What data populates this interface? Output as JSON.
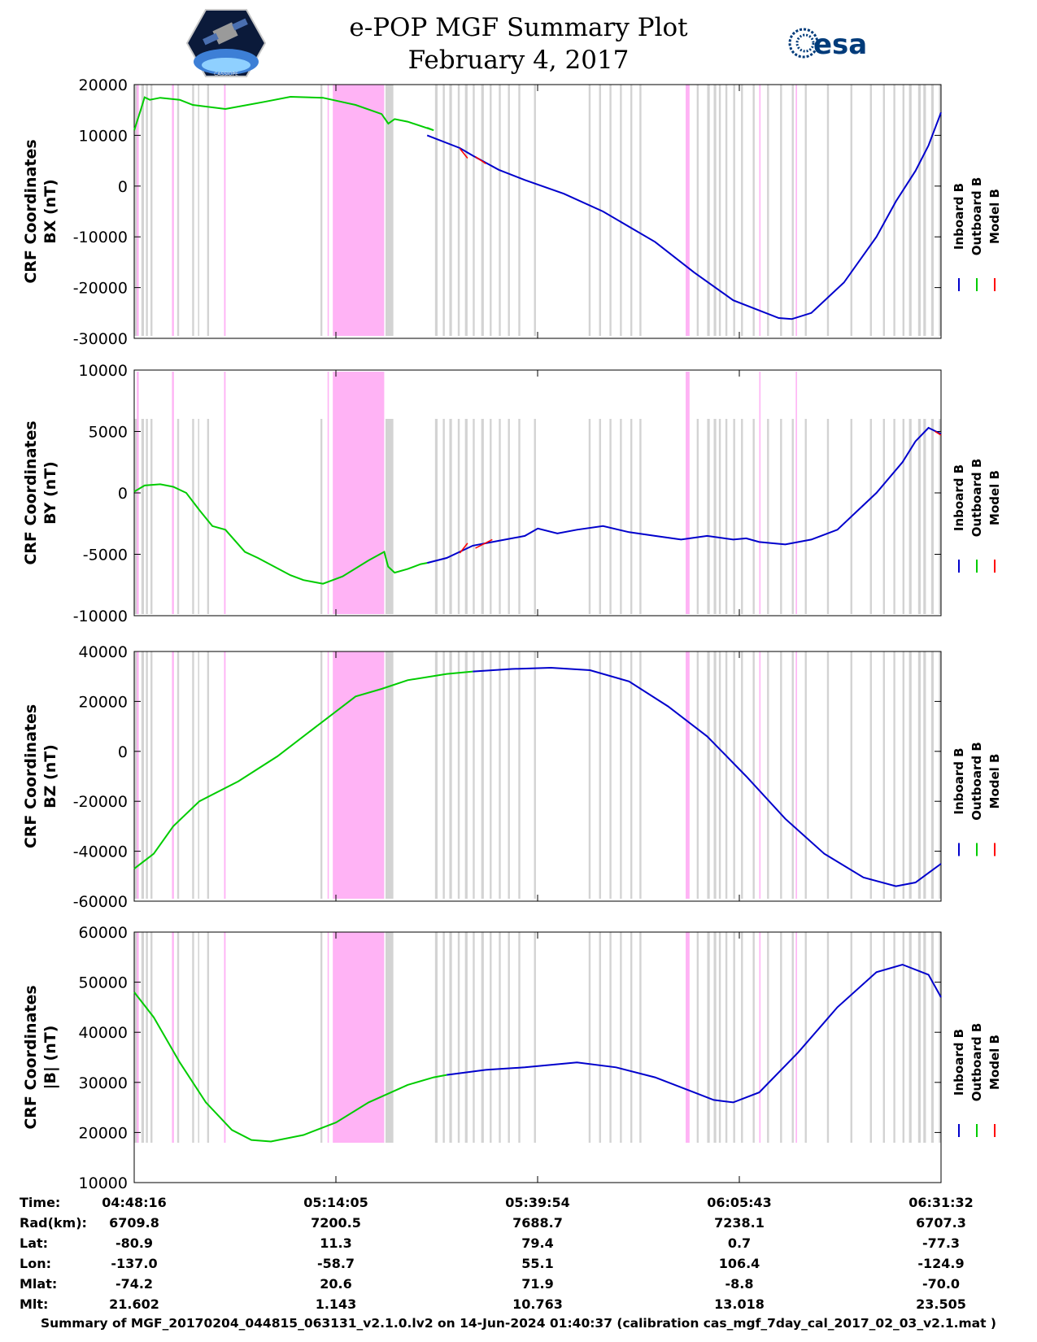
{
  "title": {
    "line1": "e-POP MGF Summary Plot",
    "line2": "February 4, 2017"
  },
  "logos": {
    "left": "cassiope-mission-logo",
    "right_text": "esa"
  },
  "colors": {
    "inboard": "#0000cc",
    "outboard": "#00cc00",
    "model": "#ff0000",
    "gray_band": "#d3d3d3",
    "pink_band": "#ffb3f5"
  },
  "legend": {
    "labels": [
      "Inboard B",
      "Outboard B",
      "Model B"
    ]
  },
  "chart_data": [
    {
      "type": "line",
      "name": "BX",
      "ylabel": [
        "CRF Coordinates",
        "BX (nT)"
      ],
      "ylim": [
        -30000,
        20000
      ],
      "yticks": [
        20000,
        10000,
        0,
        -10000,
        -20000,
        -30000
      ],
      "xlim": [
        0,
        6196
      ],
      "xticks": [
        0,
        1549,
        3098,
        4647,
        6196
      ],
      "outboard": [
        [
          0,
          11000
        ],
        [
          50,
          15000
        ],
        [
          80,
          17500
        ],
        [
          120,
          17000
        ],
        [
          200,
          17400
        ],
        [
          350,
          17000
        ],
        [
          450,
          16000
        ],
        [
          700,
          15200
        ],
        [
          1000,
          16600
        ],
        [
          1200,
          17600
        ],
        [
          1449,
          17400
        ],
        [
          1700,
          16000
        ],
        [
          1900,
          14200
        ],
        [
          1951,
          12300
        ],
        [
          2000,
          13200
        ],
        [
          2100,
          12700
        ],
        [
          2300,
          11000
        ],
        [
          2250,
          11500
        ]
      ],
      "inboard": [
        [
          2250,
          10000
        ],
        [
          2500,
          7500
        ],
        [
          2600,
          6000
        ],
        [
          2800,
          3200
        ],
        [
          3000,
          1200
        ],
        [
          3300,
          -1500
        ],
        [
          3600,
          -5000
        ],
        [
          4000,
          -11000
        ],
        [
          4300,
          -17000
        ],
        [
          4600,
          -22500
        ],
        [
          4800,
          -24500
        ],
        [
          4950,
          -26000
        ],
        [
          5050,
          -26200
        ],
        [
          5200,
          -25000
        ],
        [
          5450,
          -19000
        ],
        [
          5700,
          -10000
        ],
        [
          5850,
          -3000
        ],
        [
          6000,
          3000
        ],
        [
          6100,
          8000
        ],
        [
          6196,
          14500
        ]
      ],
      "model": [
        [
          2500,
          7400
        ],
        [
          2560,
          5500
        ],
        [
          2620,
          5800
        ],
        [
          2700,
          4400
        ]
      ]
    },
    {
      "type": "line",
      "name": "BY",
      "ylabel": [
        "CRF Coordinates",
        "BY (nT)"
      ],
      "ylim": [
        -10000,
        10000
      ],
      "yticks": [
        10000,
        5000,
        0,
        -5000,
        -10000
      ],
      "xlim": [
        0,
        6196
      ],
      "xticks": [
        0,
        1549,
        3098,
        4647,
        6196
      ],
      "outboard": [
        [
          0,
          100
        ],
        [
          80,
          600
        ],
        [
          200,
          700
        ],
        [
          300,
          500
        ],
        [
          400,
          0
        ],
        [
          500,
          -1400
        ],
        [
          600,
          -2700
        ],
        [
          700,
          -3000
        ],
        [
          850,
          -4800
        ],
        [
          950,
          -5300
        ],
        [
          1200,
          -6700
        ],
        [
          1300,
          -7100
        ],
        [
          1450,
          -7400
        ],
        [
          1600,
          -6800
        ],
        [
          1800,
          -5500
        ],
        [
          1920,
          -4800
        ],
        [
          1950,
          -6000
        ],
        [
          2000,
          -6500
        ],
        [
          2100,
          -6200
        ],
        [
          2200,
          -5800
        ],
        [
          2250,
          -5700
        ]
      ],
      "inboard": [
        [
          2250,
          -5700
        ],
        [
          2400,
          -5300
        ],
        [
          2600,
          -4300
        ],
        [
          2800,
          -3900
        ],
        [
          3000,
          -3500
        ],
        [
          3100,
          -2900
        ],
        [
          3250,
          -3300
        ],
        [
          3400,
          -3000
        ],
        [
          3600,
          -2700
        ],
        [
          3800,
          -3200
        ],
        [
          4000,
          -3500
        ],
        [
          4200,
          -3800
        ],
        [
          4400,
          -3500
        ],
        [
          4600,
          -3800
        ],
        [
          4700,
          -3700
        ],
        [
          4800,
          -4000
        ],
        [
          5000,
          -4200
        ],
        [
          5200,
          -3800
        ],
        [
          5400,
          -3000
        ],
        [
          5550,
          -1500
        ],
        [
          5700,
          0
        ],
        [
          5900,
          2500
        ],
        [
          6000,
          4200
        ],
        [
          6100,
          5300
        ],
        [
          6196,
          4800
        ]
      ],
      "model": [
        [
          2500,
          -4900
        ],
        [
          2560,
          -4100
        ],
        [
          2620,
          -4500
        ],
        [
          2750,
          -3800
        ],
        [
          6150,
          5000
        ],
        [
          6196,
          4700
        ]
      ]
    },
    {
      "type": "line",
      "name": "BZ",
      "ylabel": [
        "CRF Coordinates",
        "BZ (nT)"
      ],
      "ylim": [
        -60000,
        40000
      ],
      "yticks": [
        40000,
        20000,
        0,
        -20000,
        -40000,
        -60000
      ],
      "xlim": [
        0,
        6196
      ],
      "xticks": [
        0,
        1549,
        3098,
        4647,
        6196
      ],
      "outboard": [
        [
          0,
          -47000
        ],
        [
          150,
          -41000
        ],
        [
          300,
          -30000
        ],
        [
          500,
          -20000
        ],
        [
          800,
          -12000
        ],
        [
          1100,
          -2000
        ],
        [
          1400,
          10000
        ],
        [
          1700,
          22000
        ],
        [
          1900,
          25000
        ],
        [
          2100,
          28500
        ],
        [
          2400,
          31000
        ],
        [
          2600,
          32000
        ]
      ],
      "inboard": [
        [
          2600,
          32000
        ],
        [
          2900,
          33000
        ],
        [
          3200,
          33500
        ],
        [
          3500,
          32500
        ],
        [
          3800,
          28000
        ],
        [
          4100,
          18000
        ],
        [
          4400,
          6000
        ],
        [
          4700,
          -10000
        ],
        [
          5000,
          -27000
        ],
        [
          5300,
          -41000
        ],
        [
          5600,
          -50500
        ],
        [
          5850,
          -54000
        ],
        [
          6000,
          -52500
        ],
        [
          6196,
          -45000
        ]
      ],
      "model": []
    },
    {
      "type": "line",
      "name": "|B|",
      "ylabel": [
        "CRF Coordinates",
        "|B| (nT)"
      ],
      "ylim": [
        10000,
        60000
      ],
      "yticks": [
        60000,
        50000,
        40000,
        30000,
        20000,
        10000
      ],
      "xlim": [
        0,
        6196
      ],
      "xticks": [
        0,
        1549,
        3098,
        4647,
        6196
      ],
      "outboard": [
        [
          0,
          48000
        ],
        [
          150,
          43000
        ],
        [
          350,
          34000
        ],
        [
          550,
          26000
        ],
        [
          750,
          20500
        ],
        [
          900,
          18500
        ],
        [
          1050,
          18200
        ],
        [
          1300,
          19500
        ],
        [
          1550,
          22000
        ],
        [
          1800,
          26000
        ],
        [
          2100,
          29500
        ],
        [
          2300,
          31000
        ],
        [
          2400,
          31500
        ]
      ],
      "inboard": [
        [
          2400,
          31500
        ],
        [
          2700,
          32500
        ],
        [
          3000,
          33000
        ],
        [
          3400,
          34000
        ],
        [
          3700,
          33000
        ],
        [
          4000,
          31000
        ],
        [
          4300,
          28000
        ],
        [
          4450,
          26500
        ],
        [
          4600,
          26000
        ],
        [
          4800,
          28000
        ],
        [
          5100,
          36000
        ],
        [
          5400,
          45000
        ],
        [
          5700,
          52000
        ],
        [
          5900,
          53500
        ],
        [
          6100,
          51500
        ],
        [
          6196,
          47000
        ]
      ],
      "model": []
    }
  ],
  "bands": {
    "gray": [
      [
        0,
        30
      ],
      [
        55,
        75
      ],
      [
        90,
        105
      ],
      [
        125,
        140
      ],
      [
        330,
        345
      ],
      [
        445,
        460
      ],
      [
        490,
        500
      ],
      [
        560,
        575
      ],
      [
        1430,
        1445
      ],
      [
        1930,
        1990
      ],
      [
        2310,
        2330
      ],
      [
        2370,
        2385
      ],
      [
        2420,
        2440
      ],
      [
        2485,
        2500
      ],
      [
        2540,
        2560
      ],
      [
        2600,
        2615
      ],
      [
        2665,
        2685
      ],
      [
        2730,
        2745
      ],
      [
        2800,
        2815
      ],
      [
        2870,
        2885
      ],
      [
        2950,
        2965
      ],
      [
        3070,
        3085
      ],
      [
        3490,
        3505
      ],
      [
        3570,
        3585
      ],
      [
        3650,
        3665
      ],
      [
        3730,
        3745
      ],
      [
        3810,
        3825
      ],
      [
        3880,
        3895
      ],
      [
        4320,
        4335
      ],
      [
        4400,
        4420
      ],
      [
        4450,
        4470
      ],
      [
        4490,
        4505
      ],
      [
        4540,
        4555
      ],
      [
        4600,
        4615
      ],
      [
        4660,
        4675
      ],
      [
        4750,
        4765
      ],
      [
        4860,
        4875
      ],
      [
        4960,
        4975
      ],
      [
        5050,
        5065
      ],
      [
        5150,
        5165
      ],
      [
        5320,
        5335
      ],
      [
        5500,
        5515
      ],
      [
        5650,
        5665
      ],
      [
        5750,
        5765
      ],
      [
        5830,
        5845
      ],
      [
        5900,
        5915
      ],
      [
        5950,
        5970
      ],
      [
        6020,
        6040
      ],
      [
        6060,
        6080
      ],
      [
        6120,
        6140
      ],
      [
        6180,
        6196
      ]
    ],
    "pink": [
      [
        20,
        35
      ],
      [
        290,
        305
      ],
      [
        690,
        702
      ],
      [
        1485,
        1495
      ],
      [
        1525,
        1920
      ],
      [
        4235,
        4265
      ],
      [
        4800,
        4810
      ],
      [
        5080,
        5090
      ]
    ]
  },
  "table": {
    "row_labels": [
      "Time:",
      "Rad(km):",
      "Lat:",
      "Lon:",
      "Mlat:",
      "Mlt:"
    ],
    "columns": [
      [
        "04:48:16",
        "6709.8",
        "-80.9",
        "-137.0",
        "-74.2",
        "21.602"
      ],
      [
        "05:14:05",
        "7200.5",
        "11.3",
        "-58.7",
        "20.6",
        "1.143"
      ],
      [
        "05:39:54",
        "7688.7",
        "79.4",
        "55.1",
        "71.9",
        "10.763"
      ],
      [
        "06:05:43",
        "7238.1",
        "0.7",
        "106.4",
        "-8.8",
        "13.018"
      ],
      [
        "06:31:32",
        "6707.3",
        "-77.3",
        "-124.9",
        "-70.0",
        "23.505"
      ]
    ]
  },
  "footer": "Summary of MGF_20170204_044815_063131_v2.1.0.lv2 on 14-Jun-2024 01:40:37 (calibration cas_mgf_7day_cal_2017_02_03_v2.1.mat )"
}
